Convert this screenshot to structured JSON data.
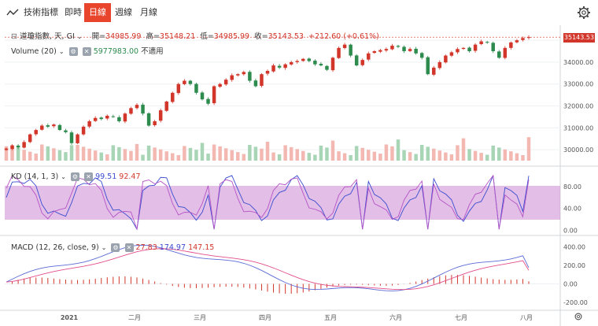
{
  "toolbar": {
    "title": "技術指標",
    "tabs": [
      "即時",
      "日線",
      "週線",
      "月線"
    ],
    "active_tab": "日線"
  },
  "legend": {
    "symbol": "道瓊指數, 天, GI",
    "open_label": "開=",
    "open": "34985.99",
    "high_label": "高=",
    "high": "35148.21",
    "low_label": "低=",
    "low": "34985.99",
    "close_label": "收=",
    "close": "35143.53",
    "change": "+212.60",
    "change_pct": "(+0.61%)",
    "volume_label": "Volume (20)",
    "volume_value": "5977983.00",
    "volume_na": "不適用",
    "kd_label": "KD (14, 1, 3)",
    "kd_k": "99.51",
    "kd_d": "92.47",
    "macd_label": "MACD (12, 26, close, 9)",
    "macd_a": "27.83",
    "macd_b": "174.97",
    "macd_c": "147.15"
  },
  "last_price_tag": "35143.53",
  "colors": {
    "up": "#d2362a",
    "down": "#2e8b4e",
    "accent": "#e8452c",
    "kd_band": "#c77fcf",
    "kd_k": "#3a4ccf",
    "kd_d": "#b453c6",
    "macd_line": "#5a6ad6",
    "signal_line": "#e24d8a"
  },
  "chart_data": [
    {
      "type": "candlestick",
      "panel": "price",
      "title": "道瓊指數, 天, GI",
      "y_ticks": [
        30000,
        31000,
        32000,
        33000,
        34000,
        35000
      ],
      "y_tick_labels": [
        "30000.00",
        "31000.00",
        "32000.00",
        "33000.00",
        "34000.00",
        "35000.00"
      ],
      "ylim": [
        29500,
        35400
      ],
      "x_tick_labels": [
        "2021",
        "二月",
        "三月",
        "四月",
        "五月",
        "六月",
        "七月",
        "八月"
      ],
      "close_path": [
        30050,
        30200,
        30100,
        30350,
        30700,
        30900,
        31100,
        31050,
        31150,
        30900,
        30800,
        30300,
        30700,
        31050,
        31300,
        31450,
        31400,
        31550,
        31500,
        31300,
        31650,
        31900,
        32050,
        31650,
        31100,
        31300,
        31800,
        32200,
        32600,
        33000,
        33150,
        33000,
        32600,
        32300,
        32100,
        32900,
        33000,
        33200,
        33400,
        33450,
        33550,
        33150,
        32900,
        33450,
        33600,
        33850,
        33750,
        33900,
        34000,
        34050,
        34150,
        34050,
        33900,
        33850,
        33650,
        34200,
        34650,
        34800,
        34300,
        33850,
        34100,
        34400,
        34500,
        34550,
        34600,
        34750,
        34700,
        34500,
        34600,
        34400,
        34200,
        33450,
        33750,
        34000,
        34300,
        34450,
        34600,
        34650,
        34500,
        34800,
        34950,
        34900,
        34500,
        34200,
        34650,
        34900,
        35000,
        35100,
        35143
      ]
    },
    {
      "type": "bar",
      "panel": "volume",
      "series": [
        {
          "name": "Volume (20)",
          "last": 5977983.0
        }
      ]
    },
    {
      "type": "line",
      "panel": "kd",
      "y_ticks": [
        0,
        40,
        80
      ],
      "y_tick_labels": [
        "0.00",
        "40.00",
        "80.00"
      ],
      "ylim": [
        -5,
        110
      ],
      "band": [
        20,
        80
      ],
      "series": [
        {
          "name": "K",
          "last": 99.51
        },
        {
          "name": "D",
          "last": 92.47
        }
      ]
    },
    {
      "type": "line",
      "panel": "macd",
      "y_ticks": [
        -200,
        0,
        200,
        400
      ],
      "y_tick_labels": [
        "-200.00",
        "0.00",
        "200.00",
        "400.00"
      ],
      "ylim": [
        -250,
        480
      ],
      "series": [
        {
          "name": "MACD",
          "last": 174.97
        },
        {
          "name": "Signal",
          "last": 147.15
        },
        {
          "name": "Histogram",
          "last": 27.83
        }
      ]
    }
  ]
}
